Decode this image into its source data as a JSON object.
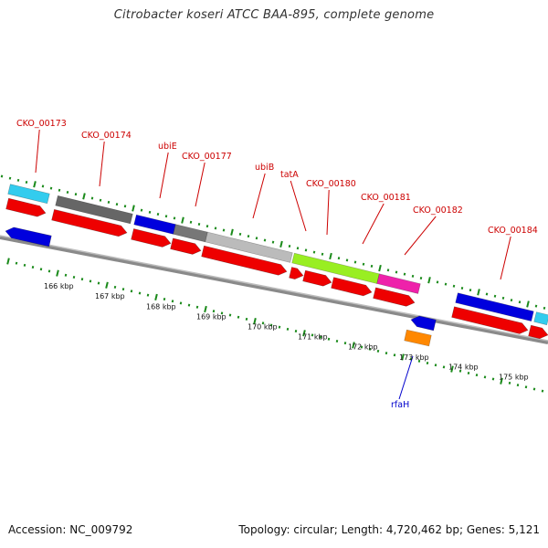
{
  "title": "Citrobacter koseri ATCC BAA-895, complete genome",
  "footer": {
    "accession": "Accession: NC_009792",
    "topology": "Topology: circular; Length: 4,720,462 bp; Genes: 5,121"
  },
  "colors": {
    "cds": "#ee0000",
    "label_red": "#cc0000",
    "label_blue": "#0000cc",
    "tick": "#1a8a1a",
    "backbone": "#888888"
  },
  "map": {
    "scale_unit": "kbp",
    "scale_labels": [
      "166 kbp",
      "167 kbp",
      "168 kbp",
      "169 kbp",
      "170 kbp",
      "171 kbp",
      "172 kbp",
      "173 kbp",
      "174 kbp",
      "175 kbp"
    ],
    "gene_labels": [
      {
        "text": "CKO_00173",
        "color": "red"
      },
      {
        "text": "CKO_00174",
        "color": "red"
      },
      {
        "text": "ubiE",
        "color": "red"
      },
      {
        "text": "CKO_00177",
        "color": "red"
      },
      {
        "text": "ubiB",
        "color": "red"
      },
      {
        "text": "tatA",
        "color": "red"
      },
      {
        "text": "CKO_00180",
        "color": "red"
      },
      {
        "text": "CKO_00181",
        "color": "red"
      },
      {
        "text": "CKO_00182",
        "color": "red"
      },
      {
        "text": "CKO_00184",
        "color": "red"
      },
      {
        "text": "rfaH",
        "color": "blue"
      }
    ],
    "category_features": [
      {
        "color": "#33ccee",
        "strand": "forward"
      },
      {
        "color": "#666666",
        "strand": "forward"
      },
      {
        "color": "#0000dd",
        "strand": "forward"
      },
      {
        "color": "#777777",
        "strand": "forward"
      },
      {
        "color": "#bbbbbb",
        "strand": "forward"
      },
      {
        "color": "#99ee22",
        "strand": "forward"
      },
      {
        "color": "#ee22aa",
        "strand": "forward"
      },
      {
        "color": "#0000dd",
        "strand": "forward"
      },
      {
        "color": "#33ccee",
        "strand": "forward"
      },
      {
        "color": "#0000dd",
        "strand": "reverse"
      },
      {
        "color": "#ff8800",
        "strand": "reverse"
      }
    ],
    "cds_features": [
      {
        "strand": "forward"
      },
      {
        "strand": "forward"
      },
      {
        "strand": "forward"
      },
      {
        "strand": "forward"
      },
      {
        "strand": "forward"
      },
      {
        "strand": "forward"
      },
      {
        "strand": "forward"
      },
      {
        "strand": "forward"
      },
      {
        "strand": "forward"
      },
      {
        "strand": "forward"
      },
      {
        "strand": "forward"
      },
      {
        "strand": "forward"
      },
      {
        "strand": "reverse"
      }
    ]
  }
}
